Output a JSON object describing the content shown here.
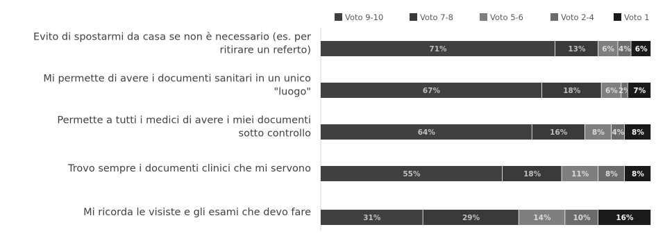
{
  "chart_data": {
    "type": "bar",
    "orientation": "horizontal",
    "stacked": true,
    "normalized": true,
    "categories": [
      [
        "Evito di spostarmi da casa se non è necessario (es. per",
        "ritirare un referto)"
      ],
      [
        "Mi permette di avere i documenti sanitari in un unico",
        "\"luogo\""
      ],
      [
        "Permette a tutti i medici di avere i miei documenti",
        "sotto controllo"
      ],
      [
        "Trovo sempre i documenti clinici che mi servono"
      ],
      [
        "Mi ricorda le visiste e gli esami che devo fare"
      ]
    ],
    "series": [
      {
        "name": "Voto 9-10",
        "color": "#404040",
        "label_color": "#bfbfbf",
        "values": [
          71,
          67,
          64,
          55,
          31
        ],
        "labels": [
          "71%",
          "67%",
          "64%",
          "55%",
          "31%"
        ]
      },
      {
        "name": "Voto 7-8",
        "color": "#3a3a3a",
        "label_color": "#bfbfbf",
        "values": [
          13,
          18,
          16,
          18,
          29
        ],
        "labels": [
          "13%",
          "18%",
          "16%",
          "18%",
          "29%"
        ]
      },
      {
        "name": "Voto 5-6",
        "color": "#7f7f7f",
        "label_color": "#d9d9d9",
        "values": [
          6,
          6,
          8,
          11,
          14
        ],
        "labels": [
          "6%",
          "6%",
          "8%",
          "11%",
          "14%"
        ]
      },
      {
        "name": "Voto 2-4",
        "color": "#6b6b6b",
        "label_color": "#d9d9d9",
        "values": [
          4,
          2,
          4,
          8,
          10
        ],
        "labels": [
          "4%",
          "2%",
          "4%",
          "8%",
          "10%"
        ]
      },
      {
        "name": "Voto 1",
        "color": "#1a1a1a",
        "label_color": "#f2f2f2",
        "values": [
          6,
          7,
          8,
          8,
          16
        ],
        "labels": [
          "6%",
          "7%",
          "8%",
          "8%",
          "16%"
        ]
      }
    ],
    "xlim": [
      0,
      100
    ],
    "title": "",
    "xlabel": "",
    "ylabel": "",
    "legend_position": "top",
    "grid": false
  }
}
